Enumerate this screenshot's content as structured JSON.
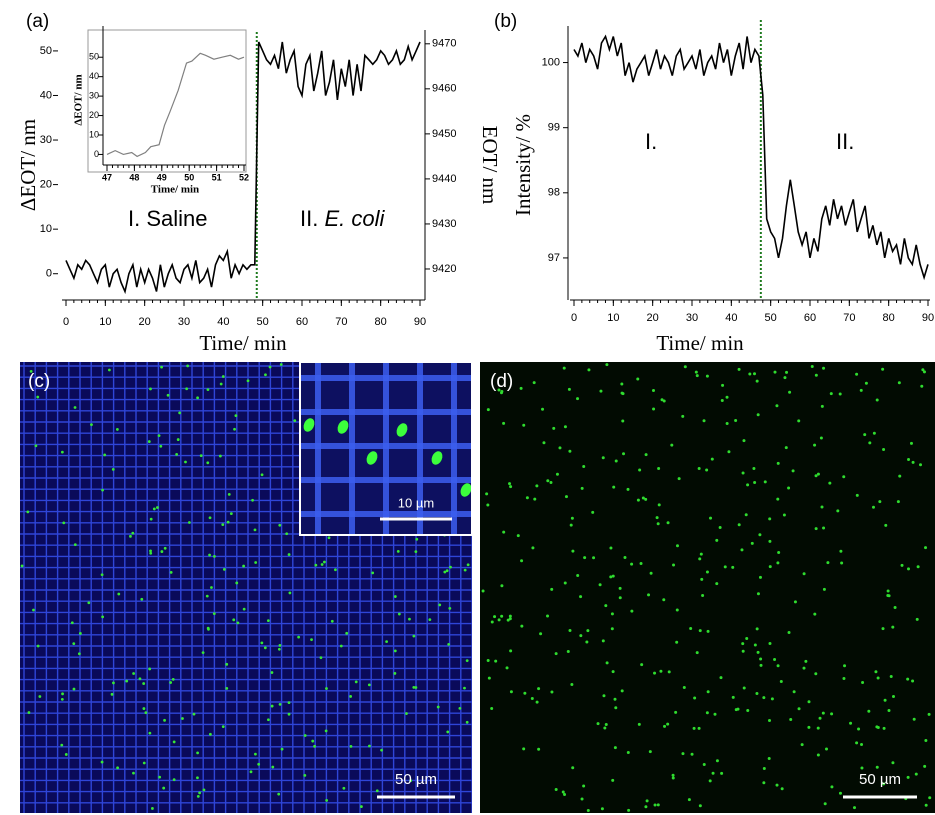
{
  "chart_data": [
    {
      "type": "line",
      "panel_label": "(a)",
      "xlabel": "Time/ min",
      "ylabel": "ΔEOT/ nm",
      "y2label": "EOT/ nm",
      "annotations": [
        "I. Saline",
        "II.",
        "E. coli"
      ],
      "xlim": [
        0,
        90
      ],
      "xticks": [
        0,
        10,
        20,
        30,
        40,
        50,
        60,
        70,
        80,
        90
      ],
      "ylim": [
        -5,
        52
      ],
      "yticks": [
        0,
        10,
        20,
        30,
        40,
        50
      ],
      "y2lim": [
        9414,
        9470.4
      ],
      "y2ticks": [
        9420,
        9430,
        9440,
        9450,
        9460,
        9470
      ],
      "vline": {
        "x": 48.5,
        "color": "#1e7a1e"
      },
      "color": "#000000",
      "x": [
        0,
        1,
        2,
        3,
        4,
        5,
        6,
        7,
        8,
        9,
        10,
        11,
        12,
        13,
        14,
        15,
        16,
        17,
        18,
        19,
        20,
        21,
        22,
        23,
        24,
        25,
        26,
        27,
        28,
        29,
        30,
        31,
        32,
        33,
        34,
        35,
        36,
        37,
        38,
        39,
        40,
        41,
        42,
        43,
        44,
        45,
        46,
        47,
        48,
        49,
        50,
        51,
        52,
        53,
        54,
        55,
        56,
        57,
        58,
        59,
        60,
        61,
        62,
        63,
        64,
        65,
        66,
        67,
        68,
        69,
        70,
        71,
        72,
        73,
        74,
        75,
        76,
        77,
        78,
        79,
        80,
        81,
        82,
        83,
        84,
        85,
        86,
        87,
        88,
        89,
        90
      ],
      "values": [
        3,
        1,
        -1,
        2,
        1,
        3,
        2,
        0,
        -2,
        1,
        2,
        -3,
        0,
        1,
        -2,
        -4,
        0,
        2,
        -3,
        1,
        -2,
        1,
        -1,
        -4,
        2,
        -3,
        0,
        2,
        -1,
        -2,
        1,
        2,
        -1,
        3,
        -2,
        -1,
        1,
        -3,
        2,
        4,
        3,
        5,
        -1,
        2,
        0,
        2,
        1,
        2,
        2,
        52,
        50,
        48,
        47,
        49,
        46,
        52,
        45,
        48,
        50,
        42,
        40,
        47,
        49,
        41,
        45,
        50,
        40,
        43,
        48,
        39,
        46,
        42,
        48,
        40,
        47,
        41,
        49,
        48,
        47,
        48,
        50,
        49,
        47,
        48,
        50,
        47,
        48,
        51,
        48,
        50,
        52
      ]
    },
    {
      "type": "line",
      "xlabel": "Time/ min",
      "ylabel": "ΔEOT/ nm",
      "xlim": [
        47,
        52
      ],
      "xticks": [
        47,
        48,
        49,
        50,
        51,
        52
      ],
      "ylim": [
        -8,
        64
      ],
      "yticks": [
        0,
        10,
        20,
        30,
        40,
        50
      ],
      "color": "#808080",
      "x": [
        47,
        47.3,
        47.6,
        47.9,
        48.1,
        48.4,
        48.6,
        48.9,
        49.1,
        49.3,
        49.6,
        49.9,
        50.1,
        50.4,
        50.6,
        50.9,
        51.2,
        51.5,
        51.8,
        52
      ],
      "values": [
        0,
        2,
        0,
        1,
        -1,
        1,
        4,
        5,
        15,
        22,
        33,
        47,
        48,
        52,
        51,
        49,
        50,
        51,
        49,
        50
      ]
    },
    {
      "type": "line",
      "panel_label": "(b)",
      "xlabel": "Time/ min",
      "ylabel": "Intensity/ %",
      "annotations": [
        "I.",
        "II."
      ],
      "xlim": [
        0,
        90
      ],
      "xticks": [
        0,
        10,
        20,
        30,
        40,
        50,
        60,
        70,
        80,
        90
      ],
      "ylim": [
        96.4,
        100.5
      ],
      "yticks": [
        97,
        98,
        99,
        100
      ],
      "vline": {
        "x": 47.5,
        "color": "#1e7a1e"
      },
      "color": "#000000",
      "x": [
        0,
        1,
        2,
        3,
        4,
        5,
        6,
        7,
        8,
        9,
        10,
        11,
        12,
        13,
        14,
        15,
        16,
        17,
        18,
        19,
        20,
        21,
        22,
        23,
        24,
        25,
        26,
        27,
        28,
        29,
        30,
        31,
        32,
        33,
        34,
        35,
        36,
        37,
        38,
        39,
        40,
        41,
        42,
        43,
        44,
        45,
        46,
        47,
        48,
        49,
        50,
        51,
        52,
        53,
        54,
        55,
        56,
        57,
        58,
        59,
        60,
        61,
        62,
        63,
        64,
        65,
        66,
        67,
        68,
        69,
        70,
        71,
        72,
        73,
        74,
        75,
        76,
        77,
        78,
        79,
        80,
        81,
        82,
        83,
        84,
        85,
        86,
        87,
        88,
        89,
        90
      ],
      "values": [
        100.2,
        100.1,
        100.3,
        100.0,
        100.2,
        100.1,
        99.9,
        100.3,
        100.4,
        100.2,
        100.4,
        100.1,
        100.3,
        99.8,
        100.0,
        99.7,
        99.9,
        100.0,
        100.1,
        99.8,
        100.0,
        100.2,
        99.9,
        100.1,
        100.0,
        99.8,
        100.1,
        100.2,
        99.9,
        100.0,
        100.1,
        99.9,
        100.2,
        99.8,
        100.0,
        100.1,
        99.9,
        100.3,
        100.0,
        100.2,
        99.8,
        100.1,
        100.3,
        99.9,
        100.4,
        100.0,
        100.2,
        100.1,
        99.5,
        97.6,
        97.4,
        97.3,
        97.0,
        97.3,
        97.8,
        98.2,
        97.8,
        97.4,
        97.2,
        97.4,
        97.0,
        97.3,
        97.1,
        97.6,
        97.8,
        97.5,
        97.9,
        97.6,
        97.8,
        97.5,
        97.7,
        97.9,
        97.4,
        97.6,
        97.8,
        97.3,
        97.5,
        97.2,
        97.4,
        97.0,
        97.3,
        97.1,
        97.2,
        96.9,
        97.3,
        97.0,
        96.9,
        97.2,
        96.9,
        96.7,
        96.9
      ]
    }
  ],
  "images": [
    {
      "panel_label": "(c)",
      "inset_scale": "10 µm",
      "scale": "50 µm"
    },
    {
      "panel_label": "(d)",
      "scale": "50 µm"
    }
  ]
}
